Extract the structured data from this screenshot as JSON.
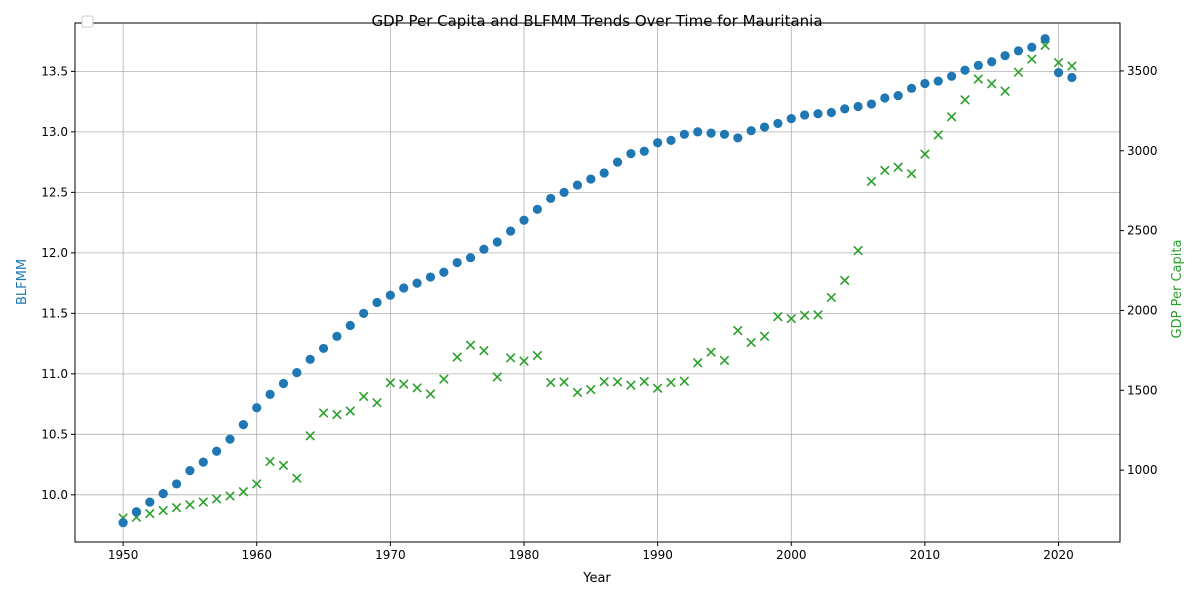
{
  "chart_data": {
    "type": "scatter",
    "title": "GDP Per Capita and BLFMM Trends Over Time for Mauritania",
    "xlabel": "Year",
    "ylabel_left": "BLFMM",
    "ylabel_right": "GDP Per Capita",
    "x_ticks": [
      "1950",
      "1960",
      "1970",
      "1980",
      "1990",
      "2000",
      "2010",
      "2020"
    ],
    "y_left_ticks": [
      "10.0",
      "10.5",
      "11.0",
      "11.5",
      "12.0",
      "12.5",
      "13.0",
      "13.5"
    ],
    "y_right_ticks": [
      "1000",
      "1500",
      "2000",
      "2500",
      "3000",
      "3500"
    ],
    "xlim": [
      1946.4,
      2024.6
    ],
    "ylim_left": [
      9.61,
      13.9
    ],
    "ylim_right": [
      550,
      3800
    ],
    "grid": true,
    "legend_placement": "upper-left",
    "colors": {
      "blfmm": "#1f77b4",
      "gdp": "#2ca02c",
      "left_label": "#1f77b4",
      "right_label": "#2ca02c",
      "grid": "#b0b0b0"
    },
    "series": [
      {
        "axis": "left",
        "marker": "circle",
        "x": [
          1950,
          1951,
          1952,
          1953,
          1954,
          1955,
          1956,
          1957,
          1958,
          1959,
          1960,
          1961,
          1962,
          1963,
          1964,
          1965,
          1966,
          1967,
          1968,
          1969,
          1970,
          1971,
          1972,
          1973,
          1974,
          1975,
          1976,
          1977,
          1978,
          1979,
          1980,
          1981,
          1982,
          1983,
          1984,
          1985,
          1986,
          1987,
          1988,
          1989,
          1990,
          1991,
          1992,
          1993,
          1994,
          1995,
          1996,
          1997,
          1998,
          1999,
          2000,
          2001,
          2002,
          2003,
          2004,
          2005,
          2006,
          2007,
          2008,
          2009,
          2010,
          2011,
          2012,
          2013,
          2014,
          2015,
          2016,
          2017,
          2018,
          2019,
          2020,
          2021
        ],
        "y": [
          9.77,
          9.86,
          9.94,
          10.01,
          10.09,
          10.2,
          10.27,
          10.36,
          10.46,
          10.58,
          10.72,
          10.83,
          10.92,
          11.01,
          11.12,
          11.21,
          11.31,
          11.4,
          11.5,
          11.59,
          11.65,
          11.71,
          11.75,
          11.8,
          11.84,
          11.92,
          11.96,
          12.03,
          12.09,
          12.18,
          12.27,
          12.36,
          12.45,
          12.5,
          12.56,
          12.61,
          12.66,
          12.75,
          12.82,
          12.84,
          12.91,
          12.93,
          12.98,
          13.0,
          12.99,
          12.98,
          12.95,
          13.01,
          13.04,
          13.07,
          13.11,
          13.14,
          13.15,
          13.16,
          13.19,
          13.21,
          13.23,
          13.28,
          13.3,
          13.36,
          13.4,
          13.42,
          13.46,
          13.51,
          13.55,
          13.58,
          13.63,
          13.67,
          13.7,
          13.77,
          13.49,
          13.45
        ]
      },
      {
        "axis": "right",
        "marker": "x",
        "x": [
          1950,
          1951,
          1952,
          1953,
          1954,
          1955,
          1956,
          1957,
          1958,
          1959,
          1960,
          1961,
          1962,
          1963,
          1964,
          1965,
          1966,
          1967,
          1968,
          1969,
          1970,
          1971,
          1972,
          1973,
          1974,
          1975,
          1976,
          1977,
          1978,
          1979,
          1980,
          1981,
          1982,
          1983,
          1984,
          1985,
          1986,
          1987,
          1988,
          1989,
          1990,
          1991,
          1992,
          1993,
          1994,
          1995,
          1996,
          1997,
          1998,
          1999,
          2000,
          2001,
          2002,
          2003,
          2004,
          2005,
          2006,
          2007,
          2008,
          2009,
          2010,
          2011,
          2012,
          2013,
          2014,
          2015,
          2016,
          2017,
          2018,
          2019,
          2020,
          2021
        ],
        "y": [
          700,
          705,
          728,
          747,
          765,
          783,
          800,
          819,
          838,
          865,
          914,
          1054,
          1030,
          950,
          1215,
          1358,
          1348,
          1370,
          1461,
          1422,
          1547,
          1539,
          1515,
          1477,
          1570,
          1708,
          1783,
          1748,
          1583,
          1703,
          1683,
          1718,
          1549,
          1552,
          1487,
          1504,
          1554,
          1553,
          1532,
          1555,
          1513,
          1549,
          1557,
          1672,
          1739,
          1687,
          1874,
          1799,
          1838,
          1961,
          1949,
          1969,
          1972,
          2081,
          2188,
          2375,
          2808,
          2877,
          2897,
          2857,
          2979,
          3099,
          3213,
          3319,
          3449,
          3420,
          3373,
          3492,
          3574,
          3660,
          3552,
          3531
        ]
      }
    ]
  }
}
